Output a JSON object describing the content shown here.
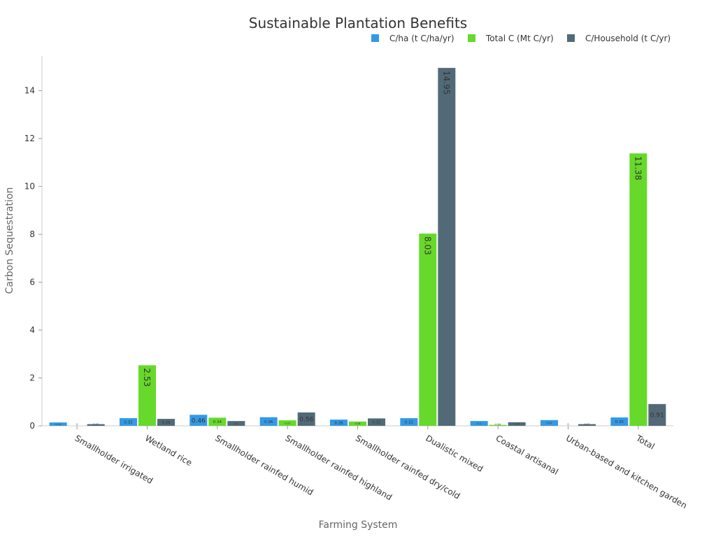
{
  "chart_data": {
    "type": "bar",
    "title": "Sustainable Plantation Benefits",
    "xlabel": "Farming System",
    "ylabel": "Carbon Sequestration",
    "categories": [
      "Smallholder irrigated",
      "Wetland rice",
      "Smallholder rainfed humid",
      "Smallholder rainfed highland",
      "Smallholder rainfed dry/cold",
      "Dualistic mixed",
      "Coastal artisanal",
      "Urban-based and kitchen garden",
      "Total"
    ],
    "series": [
      {
        "name": "C/ha (t C/ha/yr)",
        "color": "#3399e6",
        "values": [
          0.14,
          0.32,
          0.46,
          0.36,
          0.26,
          0.32,
          0.2,
          0.24,
          0.35
        ],
        "labels": [
          "0.14",
          "0.32",
          "0.46",
          "0.36",
          "0.26",
          "0.32",
          "0.2",
          "0.24",
          "0.35"
        ]
      },
      {
        "name": "Total C (Mt C/yr)",
        "color": "#66d92a",
        "values": [
          0.0,
          2.53,
          0.34,
          0.23,
          0.18,
          8.03,
          0.04,
          0.0,
          11.38
        ],
        "labels": [
          "0",
          "2.53",
          "0.34",
          "0.23",
          "0.18",
          "8.03",
          "0.04",
          "0",
          "11.38"
        ]
      },
      {
        "name": "C/Household (t C/yr)",
        "color": "#526a78",
        "values": [
          0.07,
          0.29,
          0.2,
          0.56,
          0.31,
          14.95,
          0.15,
          0.07,
          0.91
        ],
        "labels": [
          "0.07",
          "0.29",
          "0.2",
          "0.56",
          "0.31",
          "14.95",
          "0.15",
          "0.07",
          "0.91"
        ]
      }
    ],
    "yticks": [
      0,
      2,
      4,
      6,
      8,
      10,
      12,
      14
    ],
    "ylim": [
      0,
      15.45
    ],
    "legend_position": "top-right",
    "grid": false
  }
}
